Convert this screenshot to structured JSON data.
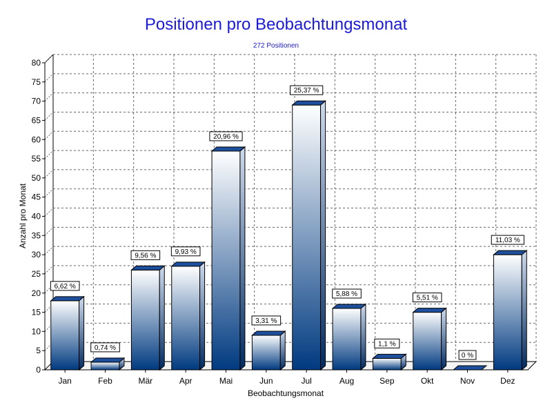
{
  "chart_data": {
    "type": "bar",
    "title": "Positionen pro Beobachtungsmonat",
    "subtitle": "272 Positionen",
    "xlabel": "Beobachtungsmonat",
    "ylabel": "Anzahl pro Monat",
    "ylim": [
      0,
      80
    ],
    "ytick_step": 5,
    "grid": true,
    "categories": [
      "Jan",
      "Feb",
      "Mär",
      "Apr",
      "Mai",
      "Jun",
      "Jul",
      "Aug",
      "Sep",
      "Okt",
      "Nov",
      "Dez"
    ],
    "values": [
      18,
      2,
      26,
      27,
      57,
      9,
      69,
      16,
      3,
      15,
      0,
      30
    ],
    "data_labels": [
      "6,62 %",
      "0,74 %",
      "9,56 %",
      "9,93 %",
      "20,96 %",
      "3,31 %",
      "25,37 %",
      "5,88 %",
      "1,1 %",
      "5,51 %",
      "0 %",
      "11,03 %"
    ],
    "colors": {
      "bar_top": "#ffffff",
      "bar_bottom": "#003a80",
      "title": "#1a1ad6"
    }
  }
}
